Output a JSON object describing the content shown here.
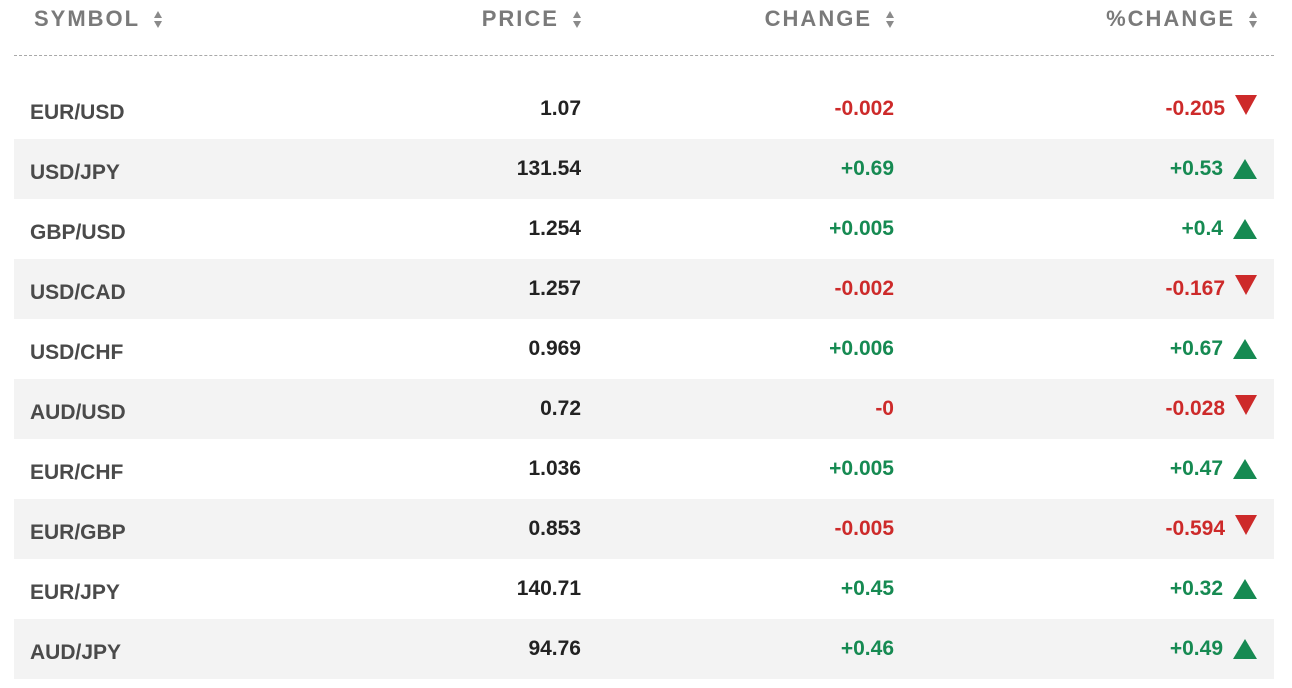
{
  "header": {
    "symbol": "SYMBOL",
    "price": "PRICE",
    "change": "CHANGE",
    "pct_change": "%CHANGE"
  },
  "colors": {
    "positive": "#168a52",
    "negative": "#cd2a2a"
  },
  "rows": [
    {
      "symbol": "EUR/USD",
      "price": "1.07",
      "change": "-0.002",
      "pct": "-0.205",
      "dir": "down"
    },
    {
      "symbol": "USD/JPY",
      "price": "131.54",
      "change": "+0.69",
      "pct": "+0.53",
      "dir": "up"
    },
    {
      "symbol": "GBP/USD",
      "price": "1.254",
      "change": "+0.005",
      "pct": "+0.4",
      "dir": "up"
    },
    {
      "symbol": "USD/CAD",
      "price": "1.257",
      "change": "-0.002",
      "pct": "-0.167",
      "dir": "down"
    },
    {
      "symbol": "USD/CHF",
      "price": "0.969",
      "change": "+0.006",
      "pct": "+0.67",
      "dir": "up"
    },
    {
      "symbol": "AUD/USD",
      "price": "0.72",
      "change": "-0",
      "pct": "-0.028",
      "dir": "down"
    },
    {
      "symbol": "EUR/CHF",
      "price": "1.036",
      "change": "+0.005",
      "pct": "+0.47",
      "dir": "up"
    },
    {
      "symbol": "EUR/GBP",
      "price": "0.853",
      "change": "-0.005",
      "pct": "-0.594",
      "dir": "down"
    },
    {
      "symbol": "EUR/JPY",
      "price": "140.71",
      "change": "+0.45",
      "pct": "+0.32",
      "dir": "up"
    },
    {
      "symbol": "AUD/JPY",
      "price": "94.76",
      "change": "+0.46",
      "pct": "+0.49",
      "dir": "up"
    }
  ]
}
